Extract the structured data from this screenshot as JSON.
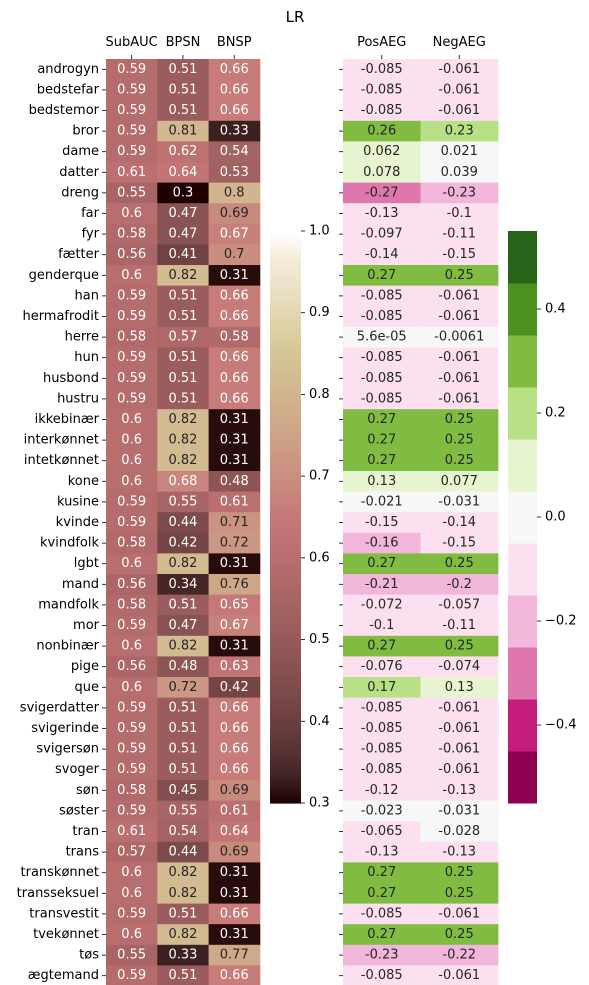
{
  "chart_data": {
    "type": "heatmap",
    "title": "LR",
    "rows": [
      "androgyn",
      "bedstefar",
      "bedstemor",
      "bror",
      "dame",
      "datter",
      "dreng",
      "far",
      "fyr",
      "fætter",
      "genderque",
      "han",
      "hermafrodit",
      "herre",
      "hun",
      "husbond",
      "hustru",
      "ikkebinær",
      "interkønnet",
      "intetkønnet",
      "kone",
      "kusine",
      "kvinde",
      "kvindfolk",
      "lgbt",
      "mand",
      "mandfolk",
      "mor",
      "nonbinær",
      "pige",
      "que",
      "svigerdatter",
      "svigerinde",
      "svigersøn",
      "svoger",
      "søn",
      "søster",
      "tran",
      "trans",
      "transkønnet",
      "transseksuel",
      "transvestit",
      "tvekønnet",
      "tøs",
      "ægtemand"
    ],
    "left": {
      "columns": [
        "SubAUC",
        "BPSN",
        "BNSP"
      ],
      "colormap": "pink",
      "vmin": 0.3,
      "vmax": 1.0,
      "colorbar_ticks": [
        "0.3",
        "0.4",
        "0.5",
        "0.6",
        "0.7",
        "0.8",
        "0.9",
        "1.0"
      ],
      "values": [
        [
          0.59,
          0.51,
          0.66
        ],
        [
          0.59,
          0.51,
          0.66
        ],
        [
          0.59,
          0.51,
          0.66
        ],
        [
          0.59,
          0.81,
          0.33
        ],
        [
          0.59,
          0.62,
          0.54
        ],
        [
          0.61,
          0.64,
          0.53
        ],
        [
          0.55,
          0.3,
          0.8
        ],
        [
          0.6,
          0.47,
          0.69
        ],
        [
          0.58,
          0.47,
          0.67
        ],
        [
          0.56,
          0.41,
          0.7
        ],
        [
          0.6,
          0.82,
          0.31
        ],
        [
          0.59,
          0.51,
          0.66
        ],
        [
          0.59,
          0.51,
          0.66
        ],
        [
          0.58,
          0.57,
          0.58
        ],
        [
          0.59,
          0.51,
          0.66
        ],
        [
          0.59,
          0.51,
          0.66
        ],
        [
          0.59,
          0.51,
          0.66
        ],
        [
          0.6,
          0.82,
          0.31
        ],
        [
          0.6,
          0.82,
          0.31
        ],
        [
          0.6,
          0.82,
          0.31
        ],
        [
          0.6,
          0.68,
          0.48
        ],
        [
          0.59,
          0.55,
          0.61
        ],
        [
          0.59,
          0.44,
          0.71
        ],
        [
          0.58,
          0.42,
          0.72
        ],
        [
          0.6,
          0.82,
          0.31
        ],
        [
          0.56,
          0.34,
          0.76
        ],
        [
          0.58,
          0.51,
          0.65
        ],
        [
          0.59,
          0.47,
          0.67
        ],
        [
          0.6,
          0.82,
          0.31
        ],
        [
          0.56,
          0.48,
          0.63
        ],
        [
          0.6,
          0.72,
          0.42
        ],
        [
          0.59,
          0.51,
          0.66
        ],
        [
          0.59,
          0.51,
          0.66
        ],
        [
          0.59,
          0.51,
          0.66
        ],
        [
          0.59,
          0.51,
          0.66
        ],
        [
          0.58,
          0.45,
          0.69
        ],
        [
          0.59,
          0.55,
          0.61
        ],
        [
          0.61,
          0.54,
          0.64
        ],
        [
          0.57,
          0.44,
          0.69
        ],
        [
          0.6,
          0.82,
          0.31
        ],
        [
          0.6,
          0.82,
          0.31
        ],
        [
          0.59,
          0.51,
          0.66
        ],
        [
          0.6,
          0.82,
          0.31
        ],
        [
          0.55,
          0.33,
          0.77
        ],
        [
          0.59,
          0.51,
          0.66
        ]
      ],
      "labels": [
        [
          "0.59",
          "0.51",
          "0.66"
        ],
        [
          "0.59",
          "0.51",
          "0.66"
        ],
        [
          "0.59",
          "0.51",
          "0.66"
        ],
        [
          "0.59",
          "0.81",
          "0.33"
        ],
        [
          "0.59",
          "0.62",
          "0.54"
        ],
        [
          "0.61",
          "0.64",
          "0.53"
        ],
        [
          "0.55",
          "0.3",
          "0.8"
        ],
        [
          "0.6",
          "0.47",
          "0.69"
        ],
        [
          "0.58",
          "0.47",
          "0.67"
        ],
        [
          "0.56",
          "0.41",
          "0.7"
        ],
        [
          "0.6",
          "0.82",
          "0.31"
        ],
        [
          "0.59",
          "0.51",
          "0.66"
        ],
        [
          "0.59",
          "0.51",
          "0.66"
        ],
        [
          "0.58",
          "0.57",
          "0.58"
        ],
        [
          "0.59",
          "0.51",
          "0.66"
        ],
        [
          "0.59",
          "0.51",
          "0.66"
        ],
        [
          "0.59",
          "0.51",
          "0.66"
        ],
        [
          "0.6",
          "0.82",
          "0.31"
        ],
        [
          "0.6",
          "0.82",
          "0.31"
        ],
        [
          "0.6",
          "0.82",
          "0.31"
        ],
        [
          "0.6",
          "0.68",
          "0.48"
        ],
        [
          "0.59",
          "0.55",
          "0.61"
        ],
        [
          "0.59",
          "0.44",
          "0.71"
        ],
        [
          "0.58",
          "0.42",
          "0.72"
        ],
        [
          "0.6",
          "0.82",
          "0.31"
        ],
        [
          "0.56",
          "0.34",
          "0.76"
        ],
        [
          "0.58",
          "0.51",
          "0.65"
        ],
        [
          "0.59",
          "0.47",
          "0.67"
        ],
        [
          "0.6",
          "0.82",
          "0.31"
        ],
        [
          "0.56",
          "0.48",
          "0.63"
        ],
        [
          "0.6",
          "0.72",
          "0.42"
        ],
        [
          "0.59",
          "0.51",
          "0.66"
        ],
        [
          "0.59",
          "0.51",
          "0.66"
        ],
        [
          "0.59",
          "0.51",
          "0.66"
        ],
        [
          "0.59",
          "0.51",
          "0.66"
        ],
        [
          "0.58",
          "0.45",
          "0.69"
        ],
        [
          "0.59",
          "0.55",
          "0.61"
        ],
        [
          "0.61",
          "0.54",
          "0.64"
        ],
        [
          "0.57",
          "0.44",
          "0.69"
        ],
        [
          "0.6",
          "0.82",
          "0.31"
        ],
        [
          "0.6",
          "0.82",
          "0.31"
        ],
        [
          "0.59",
          "0.51",
          "0.66"
        ],
        [
          "0.6",
          "0.82",
          "0.31"
        ],
        [
          "0.55",
          "0.33",
          "0.77"
        ],
        [
          "0.59",
          "0.51",
          "0.66"
        ]
      ]
    },
    "right": {
      "columns": [
        "PosAEG",
        "NegAEG"
      ],
      "colormap": "PiYG (discrete, 11 bins)",
      "vmin": -0.55,
      "vmax": 0.55,
      "colorbar_ticks": [
        "−0.4",
        "−0.2",
        "0.0",
        "0.2",
        "0.4"
      ],
      "colorbar_tick_values": [
        -0.4,
        -0.2,
        0.0,
        0.2,
        0.4
      ],
      "bin_colors": [
        "#8e0152",
        "#c51b7d",
        "#de77ae",
        "#f1b6da",
        "#fde0ef",
        "#f7f7f7",
        "#e6f5d0",
        "#b8e186",
        "#7fbc41",
        "#4d9221",
        "#276419"
      ],
      "values": [
        [
          -0.085,
          -0.061
        ],
        [
          -0.085,
          -0.061
        ],
        [
          -0.085,
          -0.061
        ],
        [
          0.26,
          0.23
        ],
        [
          0.062,
          0.021
        ],
        [
          0.078,
          0.039
        ],
        [
          -0.27,
          -0.23
        ],
        [
          -0.13,
          -0.1
        ],
        [
          -0.097,
          -0.11
        ],
        [
          -0.14,
          -0.15
        ],
        [
          0.27,
          0.25
        ],
        [
          -0.085,
          -0.061
        ],
        [
          -0.085,
          -0.061
        ],
        [
          5.6e-05,
          -0.0061
        ],
        [
          -0.085,
          -0.061
        ],
        [
          -0.085,
          -0.061
        ],
        [
          -0.085,
          -0.061
        ],
        [
          0.27,
          0.25
        ],
        [
          0.27,
          0.25
        ],
        [
          0.27,
          0.25
        ],
        [
          0.13,
          0.077
        ],
        [
          -0.021,
          -0.031
        ],
        [
          -0.15,
          -0.14
        ],
        [
          -0.16,
          -0.15
        ],
        [
          0.27,
          0.25
        ],
        [
          -0.21,
          -0.2
        ],
        [
          -0.072,
          -0.057
        ],
        [
          -0.1,
          -0.11
        ],
        [
          0.27,
          0.25
        ],
        [
          -0.076,
          -0.074
        ],
        [
          0.17,
          0.13
        ],
        [
          -0.085,
          -0.061
        ],
        [
          -0.085,
          -0.061
        ],
        [
          -0.085,
          -0.061
        ],
        [
          -0.085,
          -0.061
        ],
        [
          -0.12,
          -0.13
        ],
        [
          -0.023,
          -0.031
        ],
        [
          -0.065,
          -0.028
        ],
        [
          -0.13,
          -0.13
        ],
        [
          0.27,
          0.25
        ],
        [
          0.27,
          0.25
        ],
        [
          -0.085,
          -0.061
        ],
        [
          0.27,
          0.25
        ],
        [
          -0.23,
          -0.22
        ],
        [
          -0.085,
          -0.061
        ]
      ],
      "labels": [
        [
          "-0.085",
          "-0.061"
        ],
        [
          "-0.085",
          "-0.061"
        ],
        [
          "-0.085",
          "-0.061"
        ],
        [
          "0.26",
          "0.23"
        ],
        [
          "0.062",
          "0.021"
        ],
        [
          "0.078",
          "0.039"
        ],
        [
          "-0.27",
          "-0.23"
        ],
        [
          "-0.13",
          "-0.1"
        ],
        [
          "-0.097",
          "-0.11"
        ],
        [
          "-0.14",
          "-0.15"
        ],
        [
          "0.27",
          "0.25"
        ],
        [
          "-0.085",
          "-0.061"
        ],
        [
          "-0.085",
          "-0.061"
        ],
        [
          "5.6e-05",
          "-0.0061"
        ],
        [
          "-0.085",
          "-0.061"
        ],
        [
          "-0.085",
          "-0.061"
        ],
        [
          "-0.085",
          "-0.061"
        ],
        [
          "0.27",
          "0.25"
        ],
        [
          "0.27",
          "0.25"
        ],
        [
          "0.27",
          "0.25"
        ],
        [
          "0.13",
          "0.077"
        ],
        [
          "-0.021",
          "-0.031"
        ],
        [
          "-0.15",
          "-0.14"
        ],
        [
          "-0.16",
          "-0.15"
        ],
        [
          "0.27",
          "0.25"
        ],
        [
          "-0.21",
          "-0.2"
        ],
        [
          "-0.072",
          "-0.057"
        ],
        [
          "-0.1",
          "-0.11"
        ],
        [
          "0.27",
          "0.25"
        ],
        [
          "-0.076",
          "-0.074"
        ],
        [
          "0.17",
          "0.13"
        ],
        [
          "-0.085",
          "-0.061"
        ],
        [
          "-0.085",
          "-0.061"
        ],
        [
          "-0.085",
          "-0.061"
        ],
        [
          "-0.085",
          "-0.061"
        ],
        [
          "-0.12",
          "-0.13"
        ],
        [
          "-0.023",
          "-0.031"
        ],
        [
          "-0.065",
          "-0.028"
        ],
        [
          "-0.13",
          "-0.13"
        ],
        [
          "0.27",
          "0.25"
        ],
        [
          "0.27",
          "0.25"
        ],
        [
          "-0.085",
          "-0.061"
        ],
        [
          "0.27",
          "0.25"
        ],
        [
          "-0.23",
          "-0.22"
        ],
        [
          "-0.085",
          "-0.061"
        ]
      ]
    }
  }
}
